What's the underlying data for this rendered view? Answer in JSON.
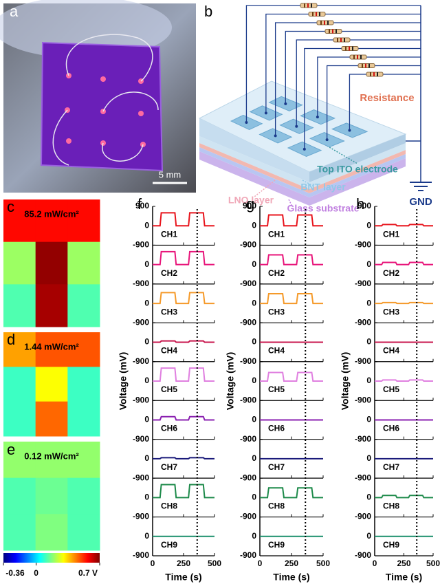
{
  "panel_labels": [
    "a",
    "b",
    "c",
    "d",
    "e",
    "f",
    "g",
    "h"
  ],
  "photo": {
    "scale_bar": "5 mm"
  },
  "schematic": {
    "resistance": "Resistance",
    "top_ito": "Top ITO electrode",
    "bnt": "BNT layer",
    "lno": "LNO layer",
    "glass": "Glass substrate",
    "gnd": "GND"
  },
  "heatmaps": {
    "colorbar": {
      "lim": [
        -0.36,
        0.7
      ],
      "ticks": [
        -0.36,
        0,
        {
          "value": 0.7,
          "label": "0.7 V"
        }
      ]
    },
    "maps": [
      {
        "label": "85.2 mW/cm²",
        "values": [
          [
            0.56,
            0.56,
            0.56
          ],
          [
            0.2,
            0.68,
            0.2
          ],
          [
            0.12,
            0.66,
            0.12
          ]
        ]
      },
      {
        "label": "1.44 mW/cm²",
        "values": [
          [
            0.4,
            0.48,
            0.48
          ],
          [
            0.1,
            0.3,
            0.1
          ],
          [
            0.1,
            0.46,
            0.1
          ]
        ]
      },
      {
        "label": "0.12 mW/cm²",
        "values": [
          [
            0.19,
            0.19,
            0.19
          ],
          [
            0.12,
            0.15,
            0.12
          ],
          [
            0.12,
            0.17,
            0.12
          ]
        ]
      }
    ]
  },
  "voltage_plots": {
    "y_label": "Voltage (mV)",
    "x_label": "Time (s)",
    "xlim": [
      0,
      500
    ],
    "xticks": [
      0,
      250,
      500
    ],
    "ylim": [
      -900,
      900
    ],
    "yticks": [
      -900,
      0,
      900
    ],
    "marker_time": 360,
    "channels": [
      "CH1",
      "CH2",
      "CH3",
      "CH4",
      "CH5",
      "CH6",
      "CH7",
      "CH8",
      "CH9"
    ],
    "colors": [
      "#e8141c",
      "#e8157a",
      "#f59a2a",
      "#c8174e",
      "#e080e0",
      "#8a1fb0",
      "#1a1a7a",
      "#1d8a4a",
      "#1a8f6a"
    ],
    "time": [
      0,
      60,
      70,
      180,
      190,
      290,
      300,
      410,
      420,
      500
    ],
    "plots": [
      {
        "series": [
          [
            0,
            0,
            600,
            600,
            0,
            0,
            600,
            600,
            0,
            0
          ],
          [
            0,
            0,
            600,
            600,
            0,
            0,
            600,
            600,
            0,
            0
          ],
          [
            0,
            0,
            500,
            500,
            0,
            0,
            500,
            500,
            0,
            0
          ],
          [
            0,
            0,
            60,
            60,
            0,
            0,
            60,
            60,
            0,
            0
          ],
          [
            0,
            0,
            600,
            600,
            0,
            0,
            600,
            600,
            0,
            0
          ],
          [
            0,
            0,
            150,
            150,
            0,
            0,
            150,
            150,
            0,
            0
          ],
          [
            0,
            0,
            50,
            50,
            0,
            0,
            50,
            50,
            0,
            0
          ],
          [
            0,
            0,
            600,
            600,
            0,
            0,
            600,
            600,
            0,
            0
          ],
          [
            0,
            0,
            0,
            0,
            0,
            0,
            0,
            0,
            0,
            0
          ]
        ]
      },
      {
        "series": [
          [
            0,
            0,
            500,
            500,
            0,
            0,
            500,
            500,
            0,
            0
          ],
          [
            0,
            0,
            450,
            450,
            0,
            0,
            450,
            450,
            0,
            0
          ],
          [
            0,
            0,
            450,
            450,
            0,
            0,
            450,
            450,
            0,
            0
          ],
          [
            0,
            0,
            0,
            0,
            0,
            0,
            0,
            0,
            0,
            0
          ],
          [
            0,
            0,
            400,
            400,
            0,
            0,
            400,
            400,
            0,
            0
          ],
          [
            0,
            0,
            0,
            0,
            0,
            0,
            0,
            0,
            0,
            0
          ],
          [
            0,
            0,
            0,
            0,
            0,
            0,
            0,
            0,
            0,
            0
          ],
          [
            0,
            0,
            450,
            450,
            0,
            0,
            450,
            450,
            0,
            0
          ],
          [
            0,
            0,
            0,
            0,
            0,
            0,
            0,
            0,
            0,
            0
          ]
        ]
      },
      {
        "series": [
          [
            0,
            0,
            60,
            60,
            0,
            0,
            60,
            60,
            0,
            0
          ],
          [
            0,
            0,
            100,
            100,
            0,
            0,
            100,
            100,
            0,
            0
          ],
          [
            0,
            0,
            40,
            40,
            0,
            0,
            40,
            40,
            0,
            0
          ],
          [
            0,
            0,
            0,
            0,
            0,
            0,
            0,
            0,
            0,
            0
          ],
          [
            0,
            0,
            50,
            50,
            0,
            0,
            50,
            50,
            0,
            0
          ],
          [
            0,
            0,
            0,
            0,
            0,
            0,
            0,
            0,
            0,
            0
          ],
          [
            0,
            0,
            0,
            0,
            0,
            0,
            0,
            0,
            0,
            0
          ],
          [
            0,
            0,
            100,
            100,
            0,
            0,
            100,
            100,
            0,
            0
          ],
          [
            0,
            0,
            0,
            0,
            0,
            0,
            0,
            0,
            0,
            0
          ]
        ]
      }
    ]
  }
}
